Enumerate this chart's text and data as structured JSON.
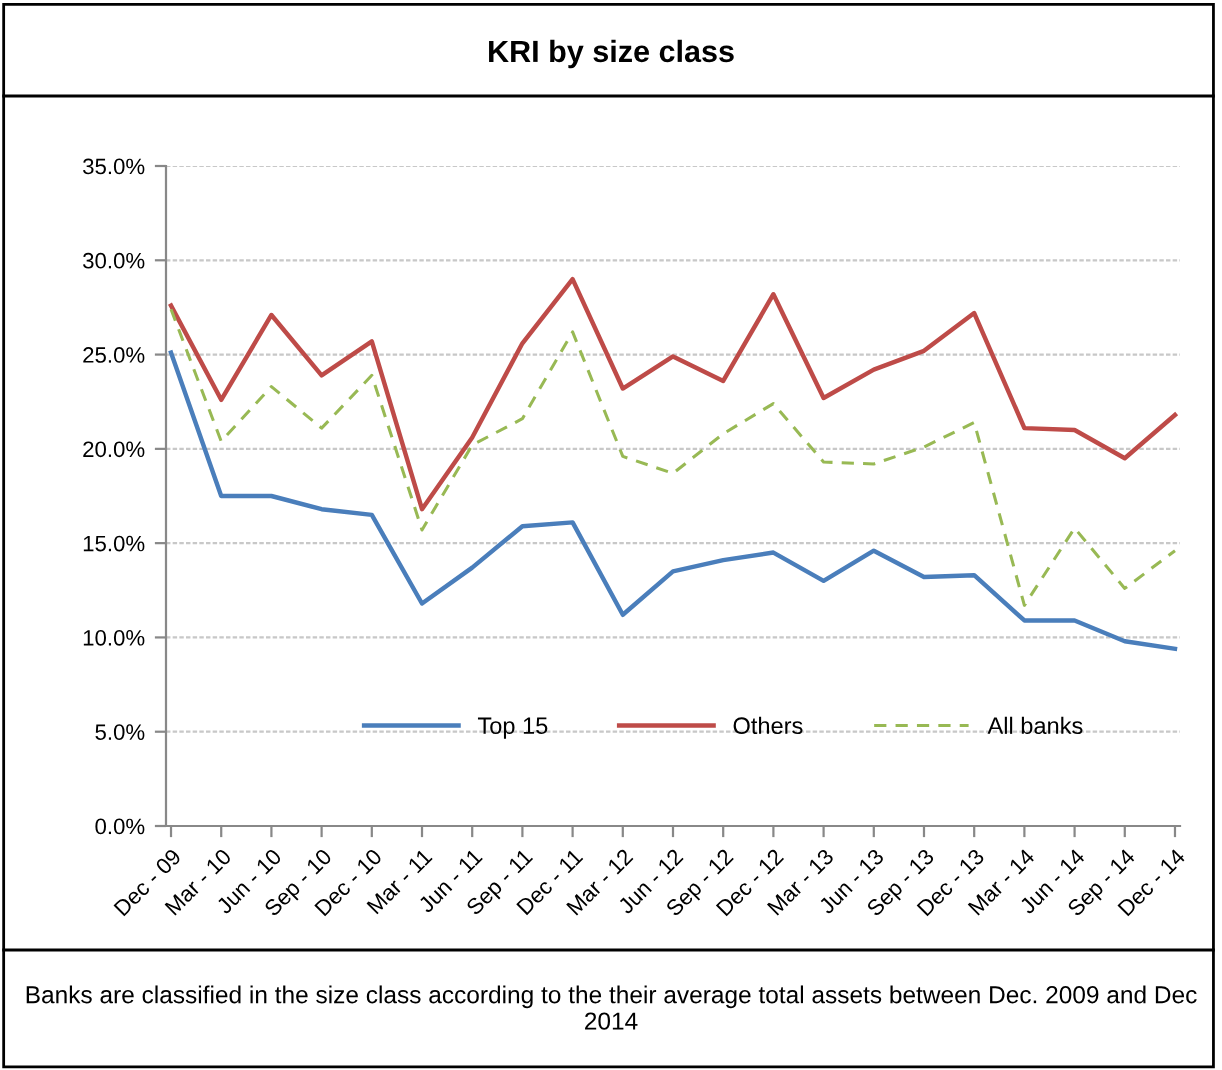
{
  "chart_data": {
    "type": "line",
    "title": "KRI by size class",
    "categories": [
      "Dec - 09",
      "Mar - 10",
      "Jun - 10",
      "Sep - 10",
      "Dec - 10",
      "Mar - 11",
      "Jun - 11",
      "Sep - 11",
      "Dec - 11",
      "Mar - 12",
      "Jun - 12",
      "Sep - 12",
      "Dec - 12",
      "Mar - 13",
      "Jun - 13",
      "Sep - 13",
      "Dec - 13",
      "Mar - 14",
      "Jun - 14",
      "Sep - 14",
      "Dec - 14"
    ],
    "series": [
      {
        "name": "Top 15",
        "color": "#4a7ebb",
        "line_style": "solid",
        "values": [
          25.1,
          17.5,
          17.5,
          16.8,
          16.5,
          11.8,
          13.7,
          15.9,
          16.1,
          11.2,
          13.5,
          14.1,
          14.5,
          13.0,
          14.6,
          13.2,
          13.3,
          10.9,
          10.9,
          9.8,
          9.4
        ]
      },
      {
        "name": "Others",
        "color": "#be4b48",
        "line_style": "solid",
        "values": [
          27.6,
          22.6,
          27.1,
          23.9,
          25.7,
          16.8,
          20.6,
          25.6,
          29.0,
          23.2,
          24.9,
          23.6,
          28.2,
          22.7,
          24.2,
          25.2,
          27.2,
          21.1,
          21.0,
          19.5,
          21.8
        ]
      },
      {
        "name": "All banks",
        "color": "#98b954",
        "line_style": "dashed",
        "values": [
          27.4,
          20.4,
          23.3,
          21.1,
          23.9,
          15.7,
          20.2,
          21.6,
          26.2,
          19.6,
          18.7,
          20.8,
          22.4,
          19.3,
          19.2,
          20.1,
          21.4,
          11.7,
          15.8,
          12.6,
          14.6
        ]
      }
    ],
    "ylim": [
      0,
      35
    ],
    "yticks": [
      {
        "value": 0,
        "label": "0.0%"
      },
      {
        "value": 5,
        "label": "5.0%"
      },
      {
        "value": 10,
        "label": "10.0%"
      },
      {
        "value": 15,
        "label": "15.0%"
      },
      {
        "value": 20,
        "label": "20.0%"
      },
      {
        "value": 25,
        "label": "25.0%"
      },
      {
        "value": 30,
        "label": "30.0%"
      },
      {
        "value": 35,
        "label": "35.0%"
      }
    ],
    "grid": "y",
    "legend": "bottom",
    "marker": "none",
    "annotations": [
      "Banks are classified in the size class according to the their average total assets between Dec. 2009 and Dec 2014"
    ]
  }
}
